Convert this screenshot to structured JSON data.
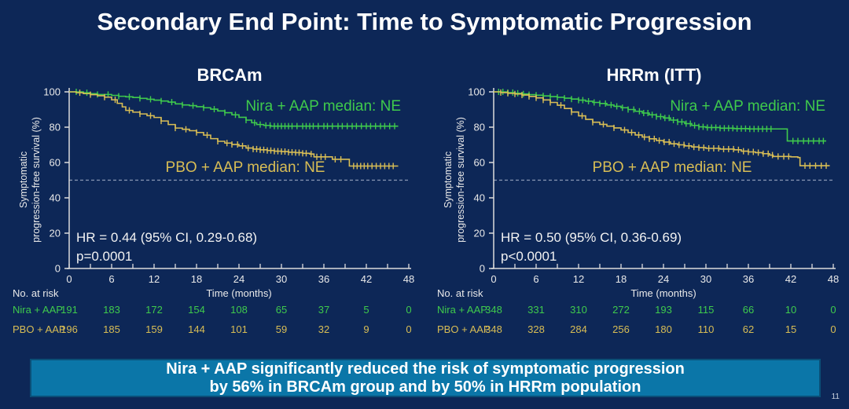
{
  "slide": {
    "title": "Secondary End Point: Time to Symptomatic Progression",
    "banner_line1": "Nira + AAP significantly reduced the risk of symptomatic progression",
    "banner_line2": "by 56% in BRCAm group and by 50% in HRRm population",
    "page_number": "11"
  },
  "colors": {
    "background": "#0d2757",
    "banner_bg": "#0b76a8",
    "banner_border": "#0a4f77",
    "title_text": "#ffffff",
    "axis": "#dcdcdc",
    "tick_text": "#e9e9e9",
    "annotation_text": "#f2f2f2",
    "ref_line": "#8c99b5",
    "green": "#3fca4c",
    "yellow": "#d8bd55",
    "page_number": "#cdd5e0"
  },
  "chart_data": [
    {
      "type": "line",
      "variant": "kaplan-meier",
      "title": "BRCAm",
      "ylabel_line1": "Symptomatic",
      "ylabel_line2": "progression-free survival (%)",
      "xlabel": "Time (months)",
      "risk_label": "No. at risk",
      "xlim": [
        0,
        48
      ],
      "ylim": [
        0,
        100
      ],
      "xticks": [
        0,
        6,
        12,
        18,
        24,
        30,
        36,
        42,
        48
      ],
      "yticks": [
        0,
        20,
        40,
        60,
        80,
        100
      ],
      "reference_line_y": 50,
      "grid": false,
      "hr_text": "HR = 0.44 (95% CI, 0.29-0.68)",
      "p_text": "p=0.0001",
      "series": [
        {
          "name": "Nira + AAP",
          "color": "green",
          "median_label": "Nira + AAP median: NE",
          "label_pos": [
            510,
            56,
            "end"
          ],
          "at_risk": [
            191,
            183,
            172,
            154,
            108,
            65,
            37,
            5,
            0
          ],
          "points": [
            [
              0,
              100
            ],
            [
              2,
              99.5
            ],
            [
              3,
              99
            ],
            [
              4,
              98.5
            ],
            [
              6,
              98
            ],
            [
              7,
              97.5
            ],
            [
              8,
              97.2
            ],
            [
              9,
              96.8
            ],
            [
              10,
              96.3
            ],
            [
              11,
              95.8
            ],
            [
              12,
              95.3
            ],
            [
              13,
              94.8
            ],
            [
              14,
              94.2
            ],
            [
              15,
              93.2
            ],
            [
              16,
              92.6
            ],
            [
              17,
              92.2
            ],
            [
              18,
              91.6
            ],
            [
              19,
              91
            ],
            [
              20,
              90.2
            ],
            [
              21,
              89.2
            ],
            [
              22,
              88.2
            ],
            [
              23,
              87
            ],
            [
              24,
              85.6
            ],
            [
              25,
              84
            ],
            [
              25.8,
              82.5
            ],
            [
              26.5,
              81.5
            ],
            [
              27.5,
              81
            ],
            [
              28.5,
              80.6
            ],
            [
              46.5,
              80.6
            ]
          ],
          "censors": [
            1,
            2.5,
            4,
            5.5,
            7,
            8.5,
            10,
            11.5,
            13,
            14.5,
            16,
            17.5,
            19,
            20.5,
            22,
            23.5,
            25,
            26.2,
            27,
            27.8,
            28.4,
            29,
            29.5,
            30,
            30.5,
            31,
            31.5,
            32.2,
            33,
            33.5,
            34,
            34.5,
            35.2,
            36,
            36.5,
            37.2,
            38,
            38.6,
            39.3,
            40,
            40.6,
            41.3,
            42,
            42.6,
            43.3,
            44,
            44.6,
            45.3,
            46
          ]
        },
        {
          "name": "PBO + AAP",
          "color": "yellow",
          "median_label": "PBO + AAP median: NE",
          "label_pos": [
            312,
            134,
            "middle"
          ],
          "at_risk": [
            196,
            185,
            159,
            144,
            101,
            59,
            32,
            9,
            0
          ],
          "points": [
            [
              0,
              100
            ],
            [
              1,
              99.5
            ],
            [
              2,
              99
            ],
            [
              3,
              98.4
            ],
            [
              4,
              97.8
            ],
            [
              5,
              97
            ],
            [
              6,
              95.5
            ],
            [
              6.8,
              93.5
            ],
            [
              7.5,
              91.5
            ],
            [
              8,
              89.5
            ],
            [
              9,
              88.5
            ],
            [
              10,
              87.5
            ],
            [
              11,
              86.5
            ],
            [
              12,
              85.5
            ],
            [
              13,
              83.5
            ],
            [
              14,
              81.5
            ],
            [
              15,
              79.5
            ],
            [
              16,
              78.8
            ],
            [
              17,
              78
            ],
            [
              18,
              77
            ],
            [
              19,
              75.5
            ],
            [
              20,
              73.5
            ],
            [
              21,
              72
            ],
            [
              22,
              71
            ],
            [
              23,
              70.2
            ],
            [
              24,
              69.4
            ],
            [
              25,
              68.2
            ],
            [
              26,
              67.6
            ],
            [
              27,
              67.2
            ],
            [
              28,
              66.8
            ],
            [
              29,
              66.4
            ],
            [
              30,
              66.2
            ],
            [
              31,
              65.8
            ],
            [
              32,
              65.6
            ],
            [
              33,
              65.2
            ],
            [
              34,
              64.8
            ],
            [
              34.6,
              63.2
            ],
            [
              36.5,
              63.2
            ],
            [
              37.2,
              61.8
            ],
            [
              39,
              61.8
            ],
            [
              39.6,
              58
            ],
            [
              46.5,
              58
            ]
          ],
          "censors": [
            1.5,
            3,
            5,
            6.5,
            8.5,
            10,
            11.5,
            13,
            15,
            16.5,
            18,
            19.5,
            21,
            22.3,
            23,
            23.8,
            24.5,
            25.3,
            26,
            26.5,
            27,
            27.5,
            28,
            28.5,
            29,
            29.5,
            30,
            30.5,
            31,
            31.5,
            32,
            32.5,
            33,
            33.5,
            34.2,
            35,
            35.6,
            36.2,
            37.6,
            38.4,
            40.2,
            40.7,
            41.2,
            41.7,
            42.2,
            42.8,
            43.4,
            44,
            44.6,
            45.2,
            45.8
          ]
        }
      ]
    },
    {
      "type": "line",
      "variant": "kaplan-meier",
      "title": "HRRm (ITT)",
      "ylabel_line1": "Symptomatic",
      "ylabel_line2": "progression-free survival (%)",
      "xlabel": "Time (months)",
      "risk_label": "No. at risk",
      "xlim": [
        0,
        48
      ],
      "ylim": [
        0,
        100
      ],
      "xticks": [
        0,
        6,
        12,
        18,
        24,
        30,
        36,
        42,
        48
      ],
      "yticks": [
        0,
        20,
        40,
        60,
        80,
        100
      ],
      "reference_line_y": 50,
      "grid": false,
      "hr_text": "HR = 0.50 (95% CI, 0.36-0.69)",
      "p_text": "p<0.0001",
      "series": [
        {
          "name": "Nira + AAP",
          "color": "green",
          "median_label": "Nira + AAP median: NE",
          "label_pos": [
            510,
            56,
            "end"
          ],
          "at_risk": [
            348,
            331,
            310,
            272,
            193,
            115,
            66,
            10,
            0
          ],
          "points": [
            [
              0,
              100
            ],
            [
              2,
              99.6
            ],
            [
              3,
              99.2
            ],
            [
              4,
              98.8
            ],
            [
              5,
              98.4
            ],
            [
              6,
              98.1
            ],
            [
              7,
              97.7
            ],
            [
              8,
              97.3
            ],
            [
              9,
              96.9
            ],
            [
              10,
              96.4
            ],
            [
              11,
              95.9
            ],
            [
              12,
              95.3
            ],
            [
              13,
              94.7
            ],
            [
              14,
              94
            ],
            [
              15,
              93.4
            ],
            [
              16,
              92.6
            ],
            [
              17,
              91.8
            ],
            [
              18,
              91
            ],
            [
              19,
              90
            ],
            [
              20,
              89
            ],
            [
              21,
              88
            ],
            [
              22,
              87
            ],
            [
              23,
              86
            ],
            [
              24,
              85.2
            ],
            [
              25,
              84
            ],
            [
              26,
              83
            ],
            [
              27,
              82
            ],
            [
              28,
              81
            ],
            [
              29,
              80.2
            ],
            [
              30,
              79.8
            ],
            [
              32,
              79.4
            ],
            [
              34,
              79.2
            ],
            [
              36,
              79
            ],
            [
              41.3,
              79
            ],
            [
              41.5,
              72.2
            ],
            [
              47,
              72.2
            ]
          ],
          "censors": [
            0.7,
            1.3,
            2,
            2.7,
            3.4,
            4.2,
            5,
            6,
            7,
            8,
            9,
            10,
            11,
            12,
            12.6,
            13.4,
            14.2,
            15,
            15.8,
            16.6,
            17.4,
            18.2,
            19,
            19.8,
            20.6,
            21.2,
            21.8,
            22.4,
            23,
            23.6,
            24.2,
            24.8,
            25.4,
            26,
            26.6,
            27.2,
            27.8,
            28.4,
            29,
            29.6,
            30.2,
            30.8,
            31.4,
            32,
            32.6,
            33.2,
            33.8,
            34.4,
            35,
            35.6,
            36.2,
            36.8,
            37.4,
            38,
            38.6,
            39.2,
            42.3,
            43,
            43.8,
            44.5,
            45.2,
            46,
            46.6
          ]
        },
        {
          "name": "PBO + AAP",
          "color": "yellow",
          "median_label": "PBO + AAP median: NE",
          "label_pos": [
            315,
            134,
            "middle"
          ],
          "at_risk": [
            348,
            328,
            284,
            256,
            180,
            110,
            62,
            15,
            0
          ],
          "points": [
            [
              0,
              100
            ],
            [
              1,
              99.6
            ],
            [
              2,
              99.2
            ],
            [
              3,
              98.8
            ],
            [
              4,
              98.2
            ],
            [
              5,
              97.4
            ],
            [
              6,
              96.6
            ],
            [
              7,
              95.4
            ],
            [
              8,
              94
            ],
            [
              9,
              92.4
            ],
            [
              10,
              90.6
            ],
            [
              11,
              88.6
            ],
            [
              12,
              86.4
            ],
            [
              13,
              84.4
            ],
            [
              14,
              82.8
            ],
            [
              15,
              81.6
            ],
            [
              16,
              80.6
            ],
            [
              17,
              79.6
            ],
            [
              18,
              78.4
            ],
            [
              19,
              77
            ],
            [
              20,
              75.6
            ],
            [
              21,
              74.4
            ],
            [
              22,
              73.4
            ],
            [
              23,
              72.4
            ],
            [
              24,
              71.6
            ],
            [
              25,
              70.6
            ],
            [
              26,
              70
            ],
            [
              27,
              69.4
            ],
            [
              28,
              68.8
            ],
            [
              29,
              68.4
            ],
            [
              30,
              68
            ],
            [
              32,
              67.6
            ],
            [
              34,
              67.2
            ],
            [
              35,
              66.4
            ],
            [
              36,
              66
            ],
            [
              37,
              65.6
            ],
            [
              38,
              65
            ],
            [
              39,
              64.2
            ],
            [
              39.5,
              63.4
            ],
            [
              42,
              63.2
            ],
            [
              43,
              62.8
            ],
            [
              43.3,
              58.2
            ],
            [
              47.5,
              58.2
            ]
          ],
          "censors": [
            1,
            2,
            3,
            4,
            5,
            6,
            7,
            8,
            9.5,
            11,
            12.5,
            14,
            15.5,
            17,
            18.5,
            19.5,
            20.5,
            21.3,
            22,
            22.7,
            23.4,
            24.1,
            24.8,
            25.5,
            26.2,
            26.9,
            27.6,
            28.3,
            29,
            29.7,
            30.4,
            31.1,
            31.8,
            32.5,
            33.2,
            33.9,
            34.6,
            35.3,
            36,
            36.7,
            37.4,
            38.1,
            38.8,
            39.4,
            40.2,
            41,
            41.7,
            44,
            44.7,
            45.5,
            46.3,
            47
          ]
        }
      ]
    }
  ]
}
